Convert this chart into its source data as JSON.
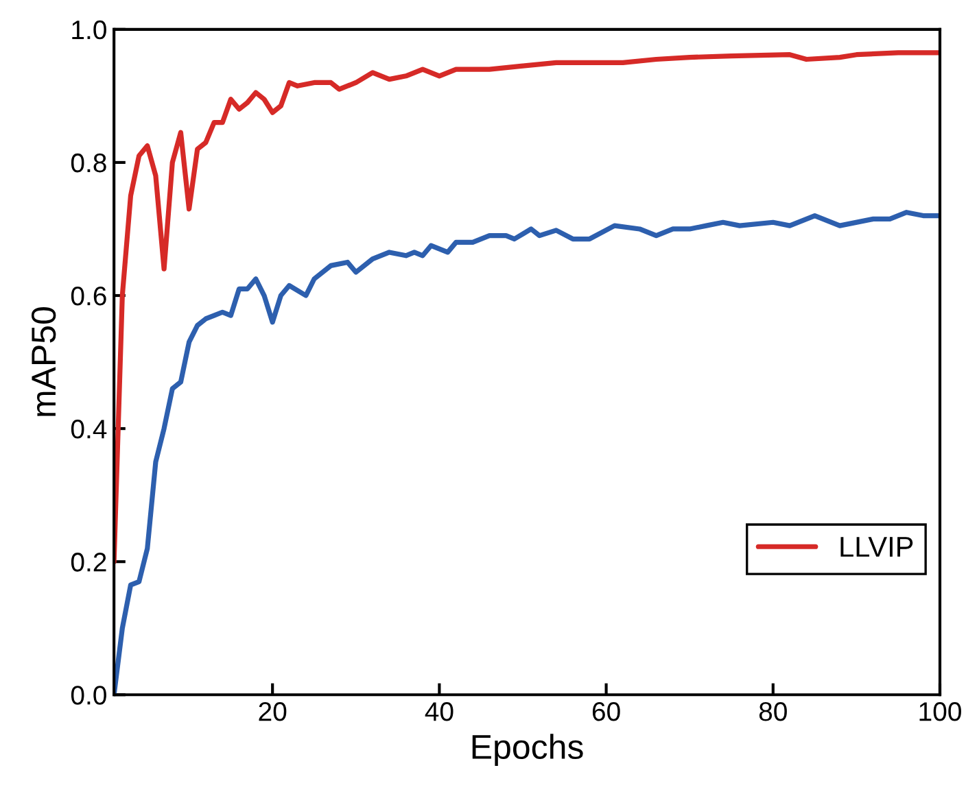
{
  "chart_data": {
    "type": "line",
    "xlabel": "Epochs",
    "ylabel": "mAP50",
    "xlim": [
      1,
      100
    ],
    "xticks": [
      20,
      40,
      60,
      80,
      100
    ],
    "ylim": [
      0,
      1.0
    ],
    "yticks": [
      {
        "value": 0,
        "label": "0.0"
      },
      0.2,
      0.4,
      0.6,
      0.8,
      {
        "value": 1.0,
        "label": "1.0"
      }
    ],
    "grid": false,
    "legend": "bottom right",
    "line_style": "solid",
    "marker": "none",
    "series": [
      {
        "name": "LLVIP",
        "color": "#d62a27",
        "x": [
          1,
          2,
          3,
          4,
          5,
          6,
          7,
          8,
          9,
          10,
          11,
          12,
          13,
          14,
          15,
          16,
          17,
          18,
          19,
          20,
          21,
          22,
          23,
          25,
          27,
          28,
          30,
          32,
          34,
          36,
          38,
          40,
          42,
          44,
          46,
          50,
          54,
          58,
          62,
          66,
          70,
          75,
          82,
          84,
          88,
          90,
          95,
          100
        ],
        "values": [
          0.2,
          0.6,
          0.75,
          0.81,
          0.825,
          0.78,
          0.64,
          0.8,
          0.845,
          0.73,
          0.82,
          0.83,
          0.86,
          0.86,
          0.895,
          0.88,
          0.89,
          0.905,
          0.895,
          0.875,
          0.885,
          0.92,
          0.915,
          0.92,
          0.92,
          0.91,
          0.92,
          0.935,
          0.925,
          0.93,
          0.94,
          0.93,
          0.94,
          0.94,
          0.94,
          0.945,
          0.95,
          0.95,
          0.95,
          0.955,
          0.958,
          0.96,
          0.962,
          0.955,
          0.958,
          0.962,
          0.965,
          0.965
        ]
      },
      {
        "color": "#2d5fae",
        "x": [
          1,
          2,
          3,
          4,
          5,
          6,
          7,
          8,
          9,
          10,
          11,
          12,
          13,
          14,
          15,
          16,
          17,
          18,
          19,
          20,
          21,
          22,
          24,
          25,
          27,
          29,
          30,
          32,
          34,
          36,
          37,
          38,
          39,
          41,
          42,
          44,
          46,
          48,
          49,
          51,
          52,
          54,
          56,
          58,
          61,
          64,
          66,
          68,
          70,
          72,
          74,
          76,
          80,
          82,
          85,
          88,
          92,
          94,
          96,
          98,
          100
        ],
        "values": [
          0.0,
          0.1,
          0.165,
          0.17,
          0.22,
          0.35,
          0.4,
          0.46,
          0.47,
          0.53,
          0.555,
          0.565,
          0.57,
          0.575,
          0.57,
          0.61,
          0.61,
          0.625,
          0.6,
          0.56,
          0.6,
          0.615,
          0.6,
          0.625,
          0.645,
          0.65,
          0.635,
          0.655,
          0.665,
          0.66,
          0.665,
          0.66,
          0.675,
          0.665,
          0.68,
          0.68,
          0.69,
          0.69,
          0.685,
          0.7,
          0.69,
          0.698,
          0.685,
          0.685,
          0.705,
          0.7,
          0.69,
          0.7,
          0.7,
          0.705,
          0.71,
          0.705,
          0.71,
          0.705,
          0.72,
          0.705,
          0.715,
          0.715,
          0.725,
          0.72,
          0.72
        ]
      }
    ]
  }
}
